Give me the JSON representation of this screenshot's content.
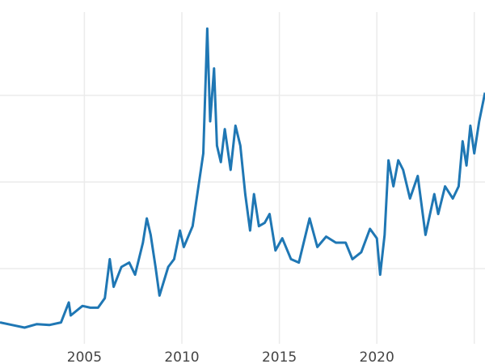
{
  "chart_data": {
    "type": "line",
    "title": "",
    "xlabel": "",
    "ylabel": "",
    "xlim": [
      2000.67,
      2025.55
    ],
    "ylim": [
      -1.0,
      41.0
    ],
    "grid": true,
    "x_ticks": [
      2005,
      2010,
      2015,
      2020,
      2025
    ],
    "x_tick_labels": [
      "2005",
      "2010",
      "2015",
      "2020",
      ""
    ],
    "y_gridlines": [
      10,
      20,
      30
    ],
    "line_color": "#1f77b4",
    "grid_color": "#ebebeb",
    "series": [
      {
        "x": [
          2000.67,
          2001.3,
          2001.93,
          2002.56,
          2003.2,
          2003.8,
          2004.2,
          2004.3,
          2004.9,
          2005.3,
          2005.7,
          2006.05,
          2006.3,
          2006.5,
          2006.9,
          2007.3,
          2007.6,
          2008.0,
          2008.2,
          2008.4,
          2008.65,
          2008.85,
          2009.3,
          2009.6,
          2009.9,
          2010.1,
          2010.55,
          2010.85,
          2011.1,
          2011.3,
          2011.45,
          2011.65,
          2011.8,
          2012.0,
          2012.2,
          2012.5,
          2012.75,
          2013.0,
          2013.25,
          2013.5,
          2013.7,
          2013.95,
          2014.25,
          2014.5,
          2014.8,
          2015.15,
          2015.6,
          2016.0,
          2016.55,
          2016.95,
          2017.4,
          2017.9,
          2018.4,
          2018.75,
          2019.2,
          2019.65,
          2020.0,
          2020.17,
          2020.4,
          2020.6,
          2020.85,
          2021.1,
          2021.35,
          2021.7,
          2022.1,
          2022.5,
          2022.95,
          2023.15,
          2023.5,
          2023.9,
          2024.2,
          2024.4,
          2024.6,
          2024.8,
          2025.0,
          2025.25,
          2025.55
        ],
        "y": [
          3.8,
          3.5,
          3.2,
          3.6,
          3.5,
          3.8,
          6.1,
          4.6,
          5.7,
          5.5,
          5.5,
          6.6,
          11.1,
          7.9,
          10.2,
          10.7,
          9.3,
          13.0,
          15.8,
          13.9,
          10.2,
          6.9,
          10.2,
          11.1,
          14.4,
          12.5,
          14.9,
          19.5,
          23.3,
          37.7,
          27.0,
          33.1,
          24.2,
          22.3,
          26.1,
          21.4,
          26.5,
          24.2,
          18.6,
          14.4,
          18.6,
          14.9,
          15.3,
          16.3,
          12.1,
          13.5,
          11.1,
          10.7,
          15.8,
          12.5,
          13.7,
          13.0,
          13.0,
          11.1,
          11.9,
          14.6,
          13.5,
          9.3,
          13.9,
          22.5,
          19.5,
          22.5,
          21.4,
          18.1,
          20.7,
          13.9,
          18.6,
          16.3,
          19.5,
          18.1,
          19.5,
          24.7,
          21.9,
          26.5,
          23.3,
          27.0,
          30.3
        ]
      }
    ]
  }
}
